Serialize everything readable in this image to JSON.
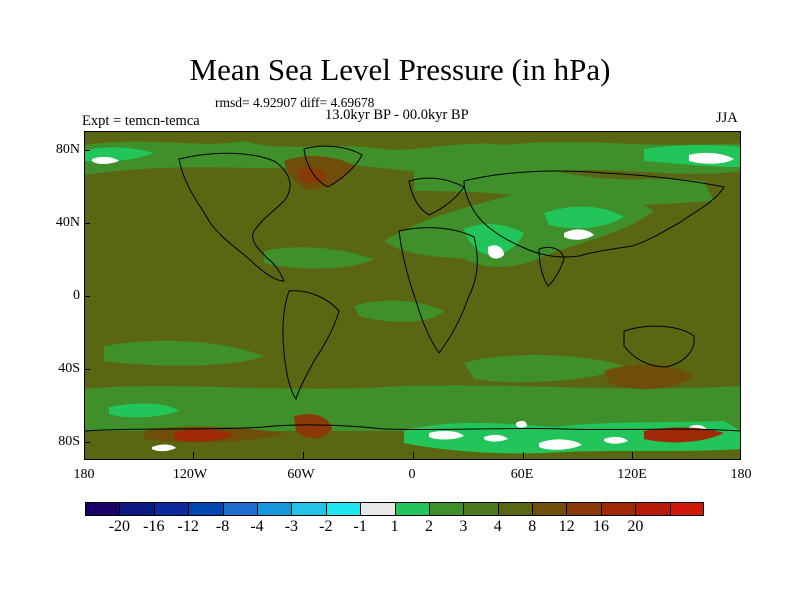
{
  "title": "Mean Sea Level Pressure (in hPa)",
  "stats": "rmsd= 4.92907 diff= 4.69678",
  "period": "13.0kyr BP - 00.0kyr BP",
  "experiment": "Expt = temcn-temca",
  "season": "JJA",
  "axes": {
    "y_labels": [
      "80N",
      "40N",
      "0",
      "40S",
      "80S"
    ],
    "x_labels": [
      "180",
      "120W",
      "60W",
      "0",
      "60E",
      "120E",
      "180"
    ]
  },
  "colorbar": {
    "colors": [
      "#1a0066",
      "#0a1a80",
      "#0d2a9c",
      "#0047b3",
      "#1e6fcf",
      "#1597dc",
      "#23c2e6",
      "#1ee6ee",
      "#e8e8e8",
      "#22c55a",
      "#3f8f2a",
      "#4d7a1e",
      "#5a6612",
      "#6e4e0a",
      "#8a3a08",
      "#a02a08",
      "#b81c08",
      "#d01808"
    ],
    "labels": [
      "-20",
      "-16",
      "-12",
      "-8",
      "-4",
      "-3",
      "-2",
      "-1",
      "1",
      "2",
      "3",
      "4",
      "8",
      "12",
      "16",
      "20"
    ]
  },
  "map_colors": {
    "background": "#5a6612",
    "light_green": "#3f8f2a",
    "green": "#22c55a",
    "white": "#ffffff",
    "brown": "#6e4e0a",
    "red_brown": "#8a3a08",
    "red": "#a02a08",
    "coast": "#000000"
  }
}
